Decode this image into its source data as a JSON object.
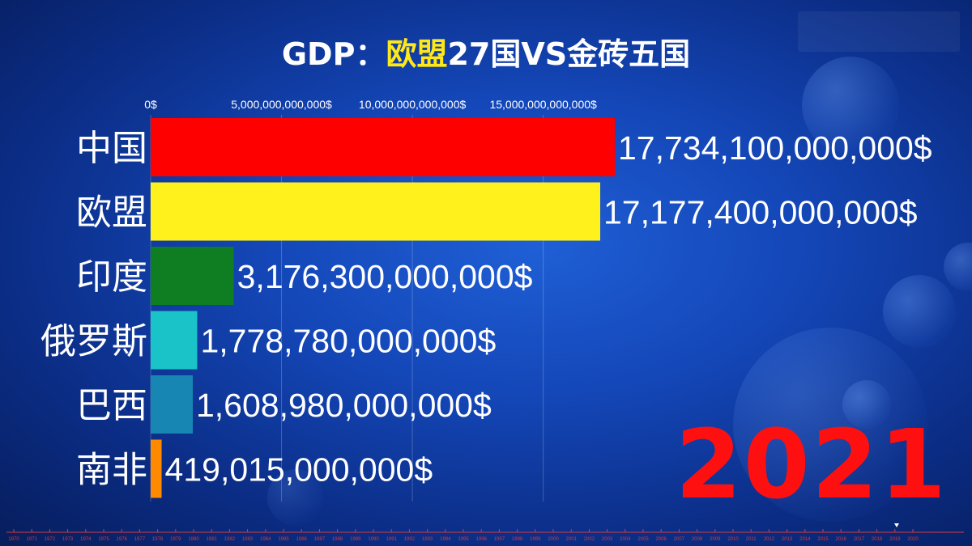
{
  "title": {
    "prefix": "GDP：",
    "highlight": "欧盟",
    "suffix": "27国VS金砖五国"
  },
  "year_label": "2021",
  "colors": {
    "title_highlight": "#ffe816",
    "year": "#ff1010",
    "timeline": "#d63a3a"
  },
  "chart_data": {
    "type": "bar",
    "orientation": "horizontal",
    "title": "GDP：欧盟27国VS金砖五国",
    "year": 2021,
    "categories": [
      "中国",
      "欧盟",
      "印度",
      "俄罗斯",
      "巴西",
      "南非"
    ],
    "values": [
      17734100000000,
      17177400000000,
      3176300000000,
      1778780000000,
      1608980000000,
      419015000000
    ],
    "value_labels": [
      "17,734,100,000,000$",
      "17,177,400,000,000$",
      "3,176,300,000,000$",
      "1,778,780,000,000$",
      "1,608,980,000,000$",
      "419,015,000,000$"
    ],
    "bar_colors": [
      "#ff0000",
      "#fff21c",
      "#0f7d21",
      "#19c3c8",
      "#1786b3",
      "#ff8a00"
    ],
    "x_ticks": [
      0,
      5000000000000,
      10000000000000,
      15000000000000
    ],
    "x_tick_labels": [
      "0$",
      "5,000,000,000,000$",
      "10,000,000,000,000$",
      "15,000,000,000,000$"
    ],
    "x_range": [
      0,
      17734100000000
    ],
    "xlabel": "",
    "ylabel": "",
    "grid": true,
    "legend": false,
    "timeline_years": [
      "1970",
      "1971",
      "1972",
      "1973",
      "1974",
      "1975",
      "1976",
      "1977",
      "1978",
      "1979",
      "1980",
      "1981",
      "1982",
      "1983",
      "1984",
      "1985",
      "1986",
      "1987",
      "1988",
      "1989",
      "1990",
      "1991",
      "1992",
      "1993",
      "1994",
      "1995",
      "1996",
      "1997",
      "1998",
      "1999",
      "2000",
      "2001",
      "2002",
      "2003",
      "2004",
      "2005",
      "2006",
      "2007",
      "2008",
      "2009",
      "2010",
      "2011",
      "2012",
      "2013",
      "2014",
      "2015",
      "2016",
      "2017",
      "2018",
      "2019",
      "2020"
    ]
  }
}
